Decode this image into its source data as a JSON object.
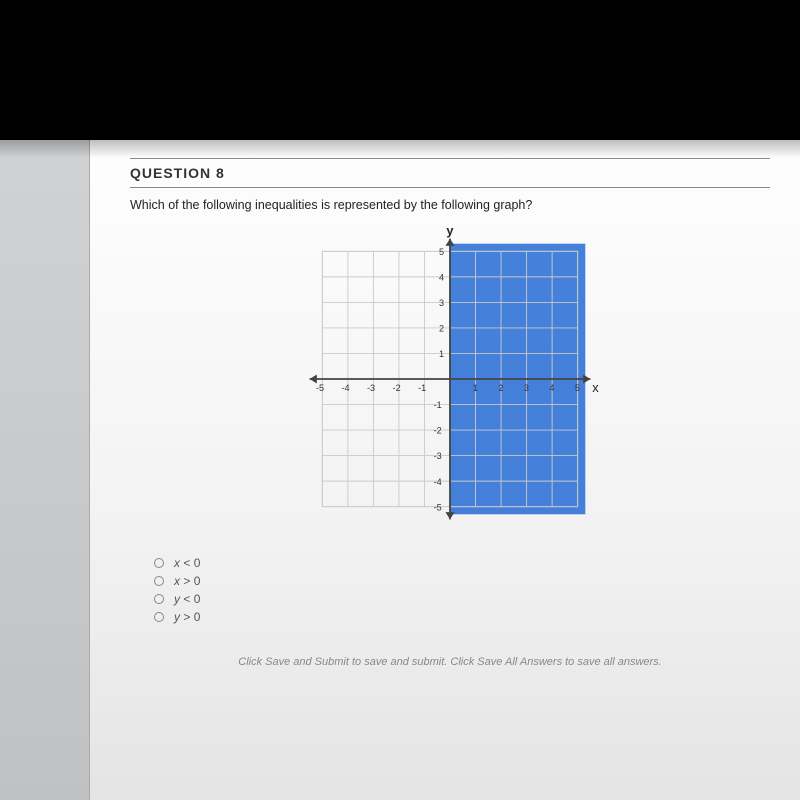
{
  "question": {
    "label": "QUESTION 8",
    "prompt": "Which of the following inequalities is represented by the following graph?"
  },
  "graph": {
    "type": "inequality-plot",
    "x_label": "x",
    "y_label": "y",
    "xlim": [
      -5,
      5
    ],
    "ylim": [
      -5,
      5
    ],
    "xticks": [
      -5,
      -4,
      -3,
      -2,
      -1,
      1,
      2,
      3,
      4,
      5
    ],
    "yticks": [
      -5,
      -4,
      -3,
      -2,
      -1,
      1,
      2,
      3,
      4,
      5
    ],
    "tick_step": 1,
    "grid_color": "#c8cacc",
    "axis_color": "#444444",
    "background_color": "#ffffff",
    "shaded_region": {
      "x_from": 0,
      "x_to": 5.3,
      "y_from": -5.3,
      "y_to": 5.3,
      "color": "#2b6fd6",
      "opacity": 0.88,
      "color_light": "#3a82e8"
    },
    "tick_label_fontsize": 10,
    "tick_label_color": "#333333",
    "axis_label_fontsize": 14,
    "axis_label_color": "#222222"
  },
  "options": [
    {
      "var": "x",
      "op": "<",
      "val": "0"
    },
    {
      "var": "x",
      "op": ">",
      "val": "0"
    },
    {
      "var": "y",
      "op": "<",
      "val": "0"
    },
    {
      "var": "y",
      "op": ">",
      "val": "0"
    }
  ],
  "hint": "Click Save and Submit to save and submit. Click Save All Answers to save all answers."
}
